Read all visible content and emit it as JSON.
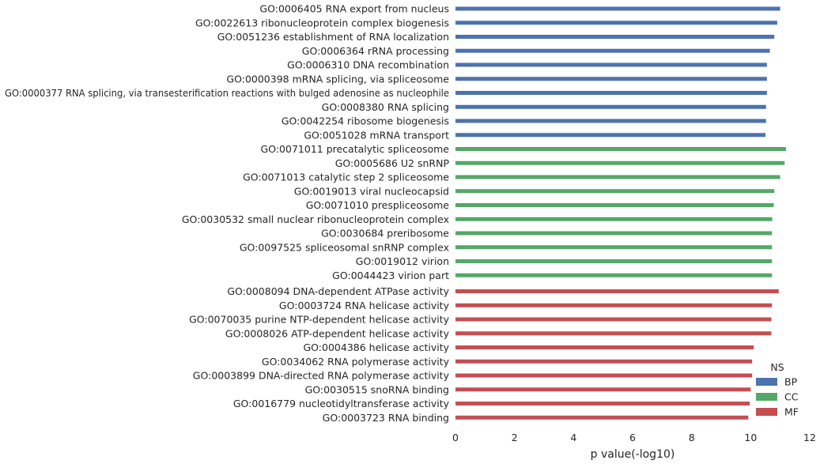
{
  "chart_data": {
    "type": "bar",
    "orientation": "horizontal",
    "title": "",
    "xlabel": "p value(-log10)",
    "ylabel": "",
    "xlim": [
      0,
      12
    ],
    "xticks": [
      "0",
      "2",
      "4",
      "6",
      "8",
      "10",
      "12"
    ],
    "grid": false,
    "legend": {
      "title": "NS",
      "placement": "lower-right",
      "entries": [
        {
          "name": "BP",
          "color": "#4c72b0"
        },
        {
          "name": "CC",
          "color": "#55a868"
        },
        {
          "name": "MF",
          "color": "#c44e52"
        }
      ]
    },
    "categories": [
      "GO:0006405 RNA export from nucleus",
      "GO:0022613 ribonucleoprotein complex biogenesis",
      "GO:0051236 establishment of RNA localization",
      "GO:0006364 rRNA processing",
      "GO:0006310 DNA recombination",
      "GO:0000398 mRNA splicing, via spliceosome",
      "GO:0000377 RNA splicing, via transesterification reactions with bulged adenosine as nucleophile",
      "GO:0008380 RNA splicing",
      "GO:0042254 ribosome biogenesis",
      "GO:0051028 mRNA transport",
      "GO:0071011 precatalytic spliceosome",
      "GO:0005686 U2 snRNP",
      "GO:0071013 catalytic step 2 spliceosome",
      "GO:0019013 viral nucleocapsid",
      "GO:0071010 prespliceosome",
      "GO:0030532 small nuclear ribonucleoprotein complex",
      "GO:0030684 preribosome",
      "GO:0097525 spliceosomal snRNP complex",
      "GO:0019012 virion",
      "GO:0044423 virion part",
      "GO:0008094 DNA-dependent ATPase activity",
      "GO:0003724 RNA helicase activity",
      "GO:0070035 purine NTP-dependent helicase activity",
      "GO:0008026 ATP-dependent helicase activity",
      "GO:0004386 helicase activity",
      "GO:0034062 RNA polymerase activity",
      "GO:0003899 DNA-directed RNA polymerase activity",
      "GO:0030515 snoRNA binding",
      "GO:0016779 nucleotidyltransferase activity",
      "GO:0003723 RNA binding"
    ],
    "groups": [
      "BP",
      "BP",
      "BP",
      "BP",
      "BP",
      "BP",
      "BP",
      "BP",
      "BP",
      "BP",
      "CC",
      "CC",
      "CC",
      "CC",
      "CC",
      "CC",
      "CC",
      "CC",
      "CC",
      "CC",
      "MF",
      "MF",
      "MF",
      "MF",
      "MF",
      "MF",
      "MF",
      "MF",
      "MF",
      "MF"
    ],
    "values": [
      11.0,
      10.9,
      10.8,
      10.65,
      10.55,
      10.55,
      10.55,
      10.52,
      10.52,
      10.5,
      11.2,
      11.15,
      11.0,
      10.8,
      10.78,
      10.73,
      10.72,
      10.72,
      10.72,
      10.72,
      10.95,
      10.72,
      10.7,
      10.7,
      10.1,
      10.05,
      10.05,
      10.0,
      9.97,
      9.92
    ]
  }
}
